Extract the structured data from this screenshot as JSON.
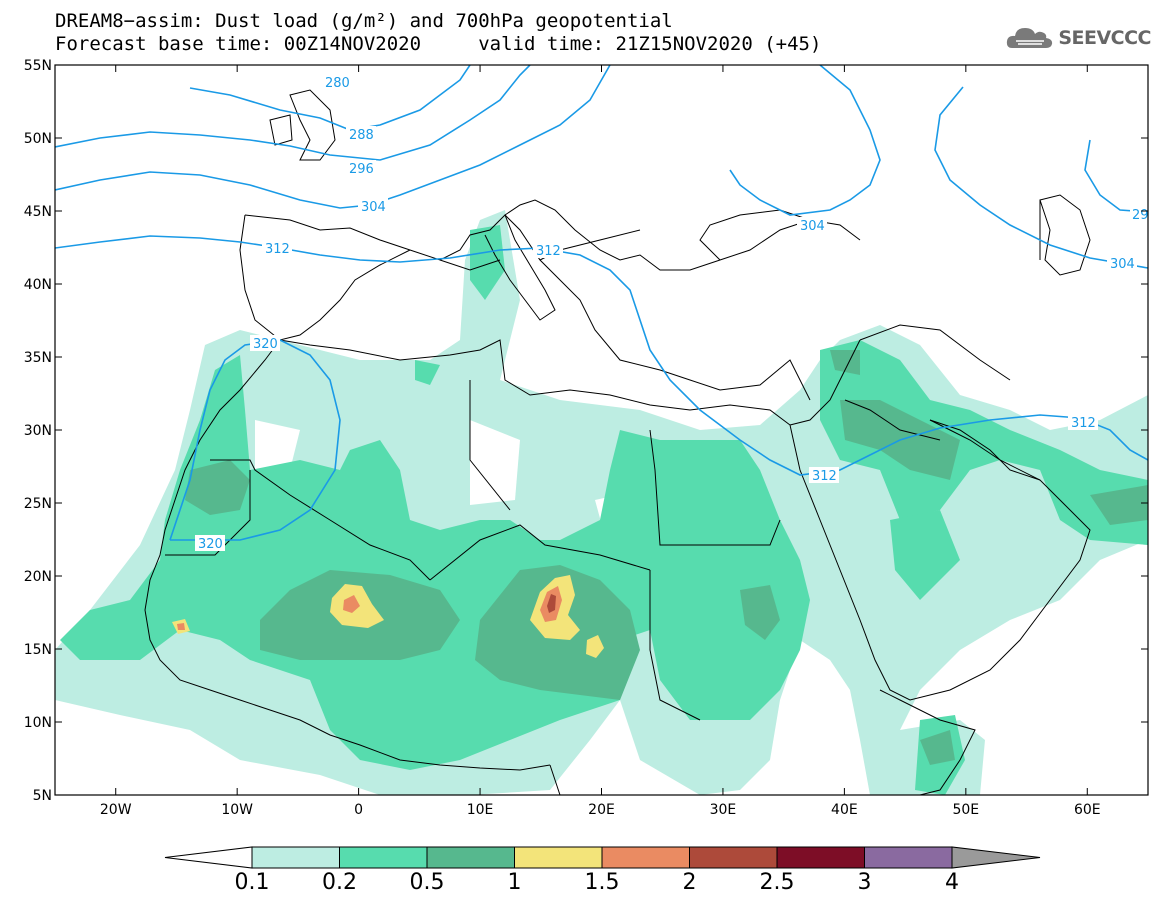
{
  "title_line1": "DREAM8−assim: Dust load (g/m²) and 700hPa geopotential",
  "title_line2": "Forecast base time: 00Z14NOV2020     valid time: 21Z15NOV2020 (+45)",
  "logo_text": "SEEVCCC",
  "map": {
    "lon_range": [
      -25,
      65
    ],
    "lat_range": [
      5,
      55
    ],
    "lon_ticks": [
      {
        "value": -20,
        "label": "20W"
      },
      {
        "value": -10,
        "label": "10W"
      },
      {
        "value": 0,
        "label": "0"
      },
      {
        "value": 10,
        "label": "10E"
      },
      {
        "value": 20,
        "label": "20E"
      },
      {
        "value": 30,
        "label": "30E"
      },
      {
        "value": 40,
        "label": "40E"
      },
      {
        "value": 50,
        "label": "50E"
      },
      {
        "value": 60,
        "label": "60E"
      }
    ],
    "lat_ticks": [
      {
        "value": 55,
        "label": "55N"
      },
      {
        "value": 50,
        "label": "50N"
      },
      {
        "value": 45,
        "label": "45N"
      },
      {
        "value": 40,
        "label": "40N"
      },
      {
        "value": 35,
        "label": "35N"
      },
      {
        "value": 30,
        "label": "30N"
      },
      {
        "value": 25,
        "label": "25N"
      },
      {
        "value": 20,
        "label": "20N"
      },
      {
        "value": 15,
        "label": "15N"
      },
      {
        "value": 10,
        "label": "10N"
      },
      {
        "value": 5,
        "label": "5N"
      }
    ],
    "contour_labels": [
      "280",
      "288",
      "296",
      "304",
      "312",
      "320"
    ]
  },
  "colorbar": {
    "levels": [
      "0.1",
      "0.2",
      "0.5",
      "1",
      "1.5",
      "2",
      "2.5",
      "3",
      "4"
    ],
    "colors": [
      "#bdede2",
      "#57dcae",
      "#56b88e",
      "#f3e47a",
      "#ea8b62",
      "#ad4a3a",
      "#7d0d26",
      "#8a6aa0"
    ],
    "under_color": "#ffffff",
    "over_color": "#9a9a9a"
  },
  "colors": {
    "geopotential_contour": "#1a9ae6",
    "coastline": "#000000"
  }
}
